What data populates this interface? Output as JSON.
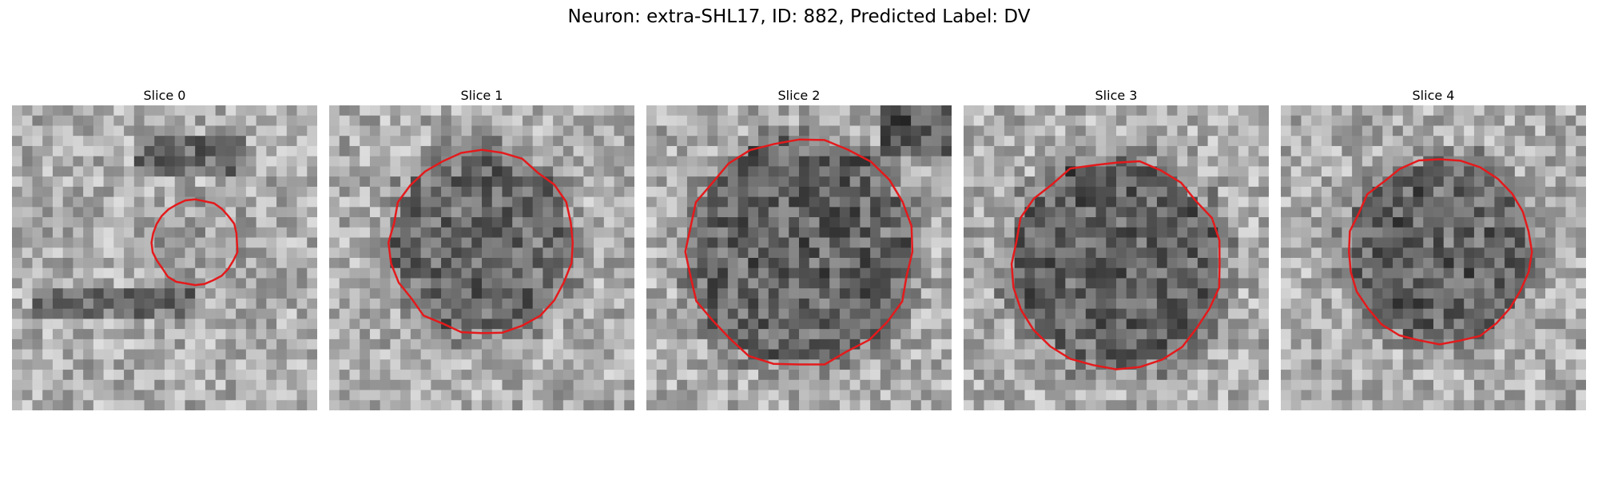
{
  "figure": {
    "title": "Neuron: extra-SHL17, ID: 882, Predicted Label: DV"
  },
  "panels": [
    {
      "label": "Slice 0",
      "contour_color": "#e41a1c",
      "cell_darkness": 0.15,
      "cell_radius_fraction": 0.14
    },
    {
      "label": "Slice 1",
      "contour_color": "#e41a1c",
      "cell_darkness": 0.55,
      "cell_radius_fraction": 0.3
    },
    {
      "label": "Slice 2",
      "contour_color": "#e41a1c",
      "cell_darkness": 0.6,
      "cell_radius_fraction": 0.37
    },
    {
      "label": "Slice 3",
      "contour_color": "#e41a1c",
      "cell_darkness": 0.62,
      "cell_radius_fraction": 0.34
    },
    {
      "label": "Slice 4",
      "contour_color": "#e41a1c",
      "cell_darkness": 0.6,
      "cell_radius_fraction": 0.3
    }
  ],
  "colormap": "grayscale"
}
